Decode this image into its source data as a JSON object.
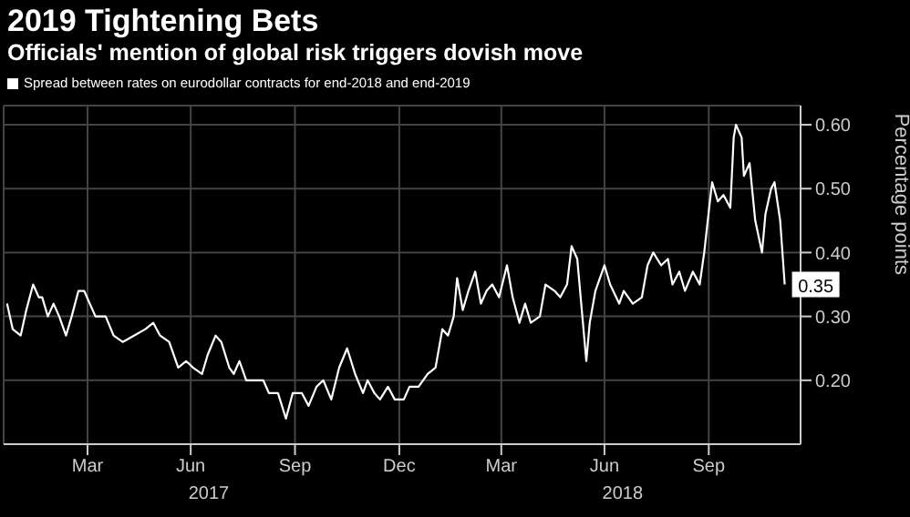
{
  "chart_data": {
    "type": "line",
    "title": "2019 Tightening Bets",
    "subtitle": "Officials' mention of global risk triggers dovish move",
    "ylabel": "Percentage points",
    "x": [
      "2017-01-04",
      "2017-01-09",
      "2017-01-16",
      "2017-01-21",
      "2017-01-27",
      "2017-02-01",
      "2017-02-04",
      "2017-02-09",
      "2017-02-14",
      "2017-02-19",
      "2017-02-25",
      "2017-03-02",
      "2017-03-08",
      "2017-03-13",
      "2017-03-18",
      "2017-03-23",
      "2017-04-01",
      "2017-04-08",
      "2017-04-16",
      "2017-04-26",
      "2017-05-06",
      "2017-05-13",
      "2017-05-19",
      "2017-05-27",
      "2017-06-04",
      "2017-06-11",
      "2017-06-17",
      "2017-06-25",
      "2017-06-30",
      "2017-07-07",
      "2017-07-12",
      "2017-07-19",
      "2017-07-23",
      "2017-07-28",
      "2017-08-03",
      "2017-08-10",
      "2017-08-18",
      "2017-08-23",
      "2017-08-31",
      "2017-09-07",
      "2017-09-13",
      "2017-09-21",
      "2017-09-27",
      "2017-10-04",
      "2017-10-10",
      "2017-10-17",
      "2017-10-24",
      "2017-10-31",
      "2017-11-07",
      "2017-11-14",
      "2017-11-18",
      "2017-11-24",
      "2017-11-29",
      "2017-12-06",
      "2017-12-12",
      "2017-12-20",
      "2017-12-25",
      "2018-01-02",
      "2018-01-10",
      "2018-01-17",
      "2018-01-23",
      "2018-01-28",
      "2018-02-02",
      "2018-02-05",
      "2018-02-10",
      "2018-02-15",
      "2018-02-21",
      "2018-02-26",
      "2018-03-03",
      "2018-03-08",
      "2018-03-14",
      "2018-03-21",
      "2018-03-26",
      "2018-04-01",
      "2018-04-06",
      "2018-04-11",
      "2018-04-19",
      "2018-04-24",
      "2018-05-02",
      "2018-05-07",
      "2018-05-13",
      "2018-05-17",
      "2018-05-22",
      "2018-05-27",
      "2018-05-30",
      "2018-06-02",
      "2018-06-07",
      "2018-06-15",
      "2018-06-20",
      "2018-06-28",
      "2018-07-02",
      "2018-07-10",
      "2018-07-18",
      "2018-07-23",
      "2018-07-28",
      "2018-08-04",
      "2018-08-10",
      "2018-08-14",
      "2018-08-20",
      "2018-08-25",
      "2018-09-01",
      "2018-09-07",
      "2018-09-11",
      "2018-09-16",
      "2018-09-18",
      "2018-09-23",
      "2018-09-28",
      "2018-10-04",
      "2018-10-07",
      "2018-10-09",
      "2018-10-14",
      "2018-10-16",
      "2018-10-21",
      "2018-10-26",
      "2018-11-01",
      "2018-11-04",
      "2018-11-09",
      "2018-11-12",
      "2018-11-17",
      "2018-11-21"
    ],
    "series": [
      {
        "name": "Spread between rates on eurodollar contracts for end-2018 and end-2019",
        "color": "#ffffff",
        "values": [
          0.32,
          0.28,
          0.27,
          0.31,
          0.35,
          0.33,
          0.33,
          0.3,
          0.32,
          0.3,
          0.27,
          0.3,
          0.34,
          0.34,
          0.32,
          0.3,
          0.3,
          0.27,
          0.26,
          0.27,
          0.28,
          0.29,
          0.27,
          0.26,
          0.22,
          0.23,
          0.22,
          0.21,
          0.24,
          0.27,
          0.26,
          0.22,
          0.21,
          0.23,
          0.2,
          0.2,
          0.2,
          0.18,
          0.18,
          0.14,
          0.18,
          0.18,
          0.16,
          0.19,
          0.2,
          0.17,
          0.22,
          0.25,
          0.21,
          0.18,
          0.2,
          0.18,
          0.17,
          0.19,
          0.17,
          0.17,
          0.19,
          0.19,
          0.21,
          0.22,
          0.28,
          0.27,
          0.3,
          0.36,
          0.31,
          0.34,
          0.37,
          0.32,
          0.34,
          0.35,
          0.33,
          0.38,
          0.33,
          0.29,
          0.32,
          0.29,
          0.3,
          0.35,
          0.34,
          0.33,
          0.35,
          0.41,
          0.39,
          0.29,
          0.23,
          0.29,
          0.34,
          0.38,
          0.35,
          0.32,
          0.34,
          0.32,
          0.33,
          0.38,
          0.4,
          0.38,
          0.39,
          0.35,
          0.37,
          0.34,
          0.37,
          0.35,
          0.4,
          0.48,
          0.51,
          0.48,
          0.49,
          0.47,
          0.58,
          0.6,
          0.58,
          0.52,
          0.54,
          0.45,
          0.4,
          0.46,
          0.5,
          0.51,
          0.45,
          0.35
        ],
        "value_labels": [
          null,
          null,
          null,
          null,
          null,
          null,
          null,
          null,
          null,
          null,
          null,
          null,
          null,
          null,
          null,
          null,
          null,
          null,
          null,
          null,
          null,
          null,
          null,
          null,
          null,
          null,
          null,
          null,
          null,
          null,
          null,
          null,
          null,
          null,
          null,
          null,
          null,
          null,
          null,
          null,
          null,
          null,
          null,
          null,
          null,
          null,
          null,
          null,
          null,
          null,
          null,
          null,
          null,
          null,
          null,
          null,
          null,
          null,
          null,
          null,
          null,
          null,
          null,
          null,
          null,
          null,
          null,
          null,
          null,
          null,
          null,
          null,
          null,
          null,
          null,
          null,
          null,
          null,
          null,
          null,
          null,
          null,
          null,
          null,
          null,
          null,
          null,
          null,
          null,
          null,
          null,
          null,
          null,
          null,
          null,
          null,
          null,
          null,
          null,
          null,
          null,
          null,
          null,
          null,
          null,
          null,
          null,
          null,
          null,
          null,
          null,
          null,
          null,
          null,
          null,
          null,
          null,
          null,
          null,
          "0.35"
        ]
      }
    ],
    "xlim": [
      "2017-01-01",
      "2018-12-05"
    ],
    "xticks": [
      {
        "value": "2017-03-16",
        "label": "Mar"
      },
      {
        "value": "2017-06-15",
        "label": "Jun"
      },
      {
        "value": "2017-09-15",
        "label": "Sep"
      },
      {
        "value": "2017-12-16",
        "label": "Dec"
      },
      {
        "value": "2018-03-16",
        "label": "Mar"
      },
      {
        "value": "2018-06-15",
        "label": "Jun"
      },
      {
        "value": "2018-09-15",
        "label": "Sep"
      }
    ],
    "ylim": [
      0.1,
      0.63
    ],
    "yticks": [
      {
        "value": 0.2,
        "label": "0.20"
      },
      {
        "value": 0.3,
        "label": "0.30"
      },
      {
        "value": 0.4,
        "label": "0.40"
      },
      {
        "value": 0.5,
        "label": "0.50"
      },
      {
        "value": 0.6,
        "label": "0.60"
      }
    ],
    "annotations": [
      "2017",
      "2018"
    ],
    "grid": true,
    "legend": "top left",
    "marker": "none",
    "line_style": "solid"
  }
}
